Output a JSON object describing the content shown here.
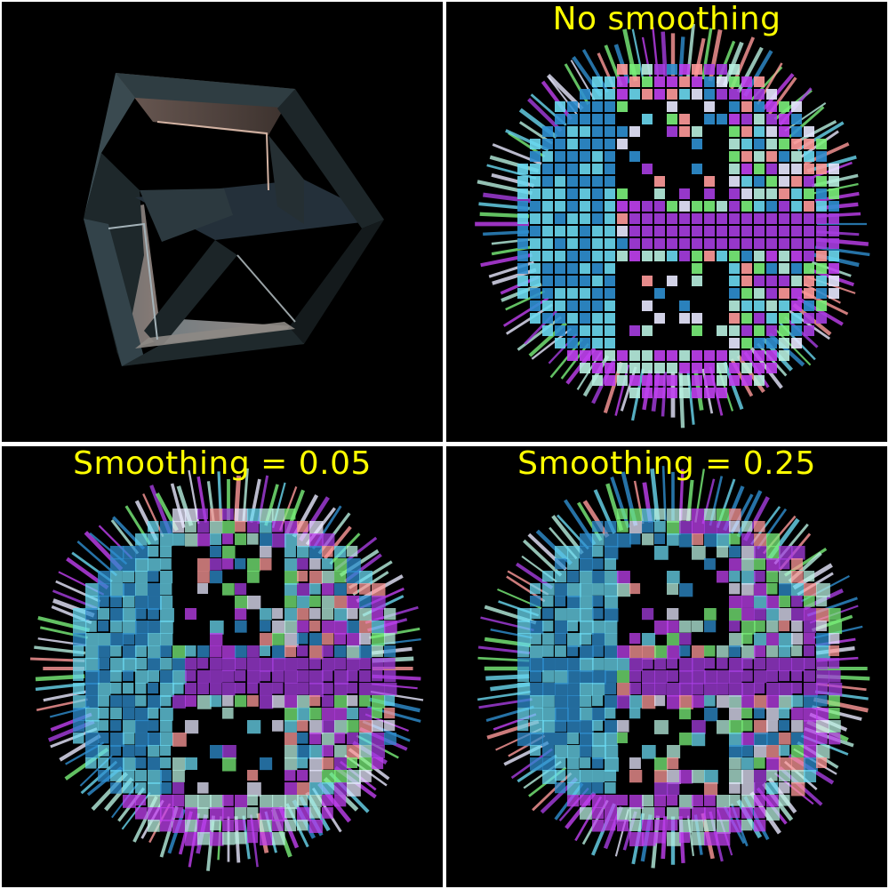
{
  "panels": [
    {
      "id": "original",
      "title": "",
      "colors": {
        "frame": "#2e3a3e",
        "inner": "#5a4a44",
        "highlight": "#c9a695"
      }
    },
    {
      "id": "no-smoothing",
      "title": "No smoothing"
    },
    {
      "id": "smoothing-005",
      "title": "Smoothing = 0.05"
    },
    {
      "id": "smoothing-025",
      "title": "Smoothing = 0.25"
    }
  ],
  "colors": {
    "background": "#000000",
    "separator": "#ffffff",
    "title": "#ffff00",
    "normals": [
      "#b8f0e0",
      "#a63de0",
      "#2f8fd0",
      "#6ad8f0",
      "#c040f0",
      "#e8e8ff",
      "#ff9a9a",
      "#7af07a"
    ]
  }
}
